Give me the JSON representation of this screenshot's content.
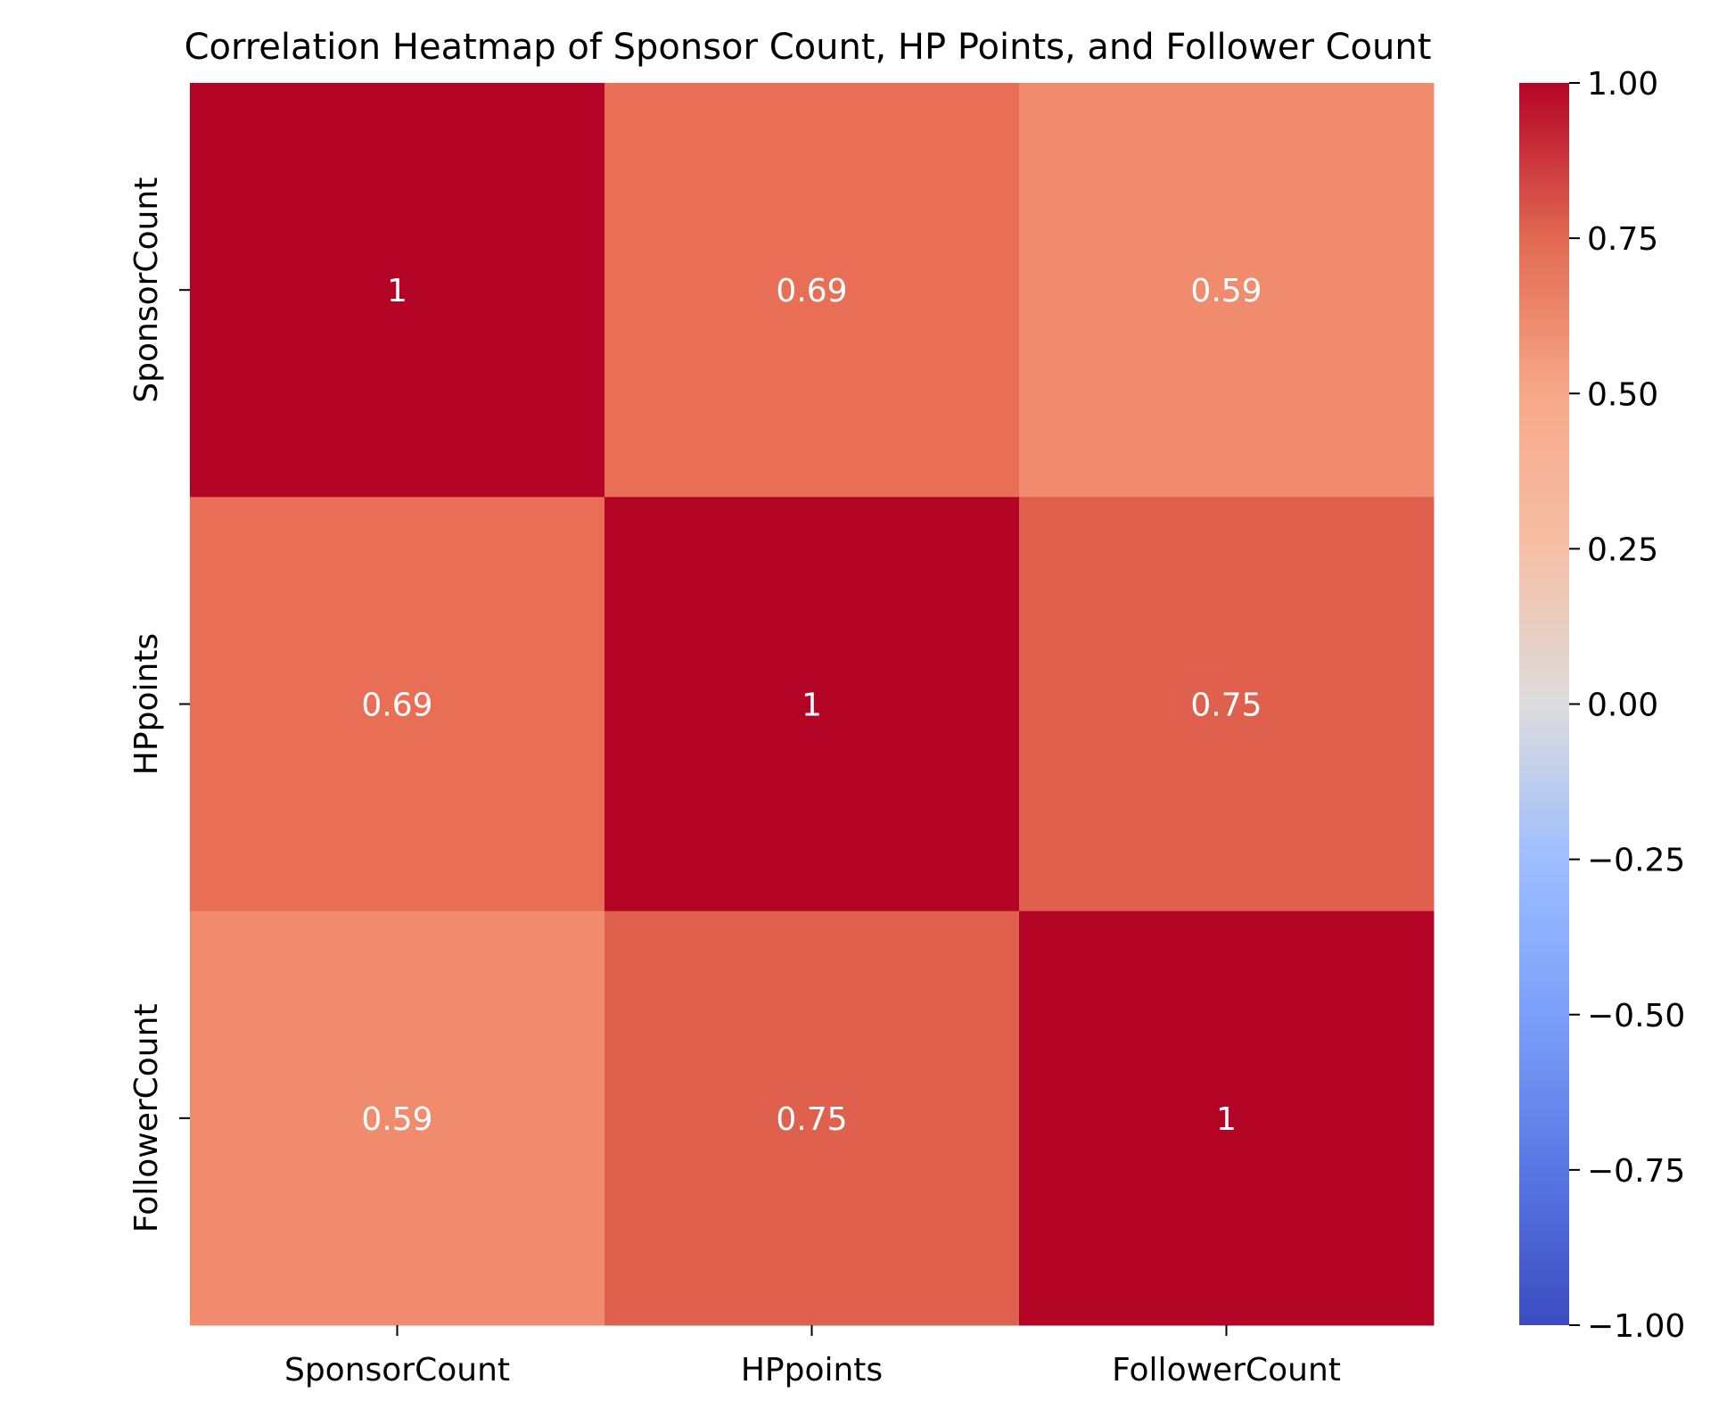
{
  "chart_data": {
    "type": "heatmap",
    "title": "Correlation Heatmap of Sponsor Count, HP Points, and Follower Count",
    "x_labels": [
      "SponsorCount",
      "HPpoints",
      "FollowerCount"
    ],
    "y_labels": [
      "SponsorCount",
      "HPpoints",
      "FollowerCount"
    ],
    "matrix": [
      [
        1,
        0.69,
        0.59
      ],
      [
        0.69,
        1,
        0.75
      ],
      [
        0.59,
        0.75,
        1
      ]
    ],
    "cell_text": [
      [
        "1",
        "0.69",
        "0.59"
      ],
      [
        "0.69",
        "1",
        "0.75"
      ],
      [
        "0.59",
        "0.75",
        "1"
      ]
    ],
    "colormap": "coolwarm",
    "vmin": -1.0,
    "vmax": 1.0,
    "colorbar_ticks": [
      1.0,
      0.75,
      0.5,
      0.25,
      0.0,
      -0.25,
      -0.5,
      -0.75,
      -1.0
    ],
    "colorbar_tick_labels": [
      "1.00",
      "0.75",
      "0.50",
      "0.25",
      "0.00",
      "−0.25",
      "−0.50",
      "−0.75",
      "−1.00"
    ],
    "annotation_color": "#ffffff"
  }
}
